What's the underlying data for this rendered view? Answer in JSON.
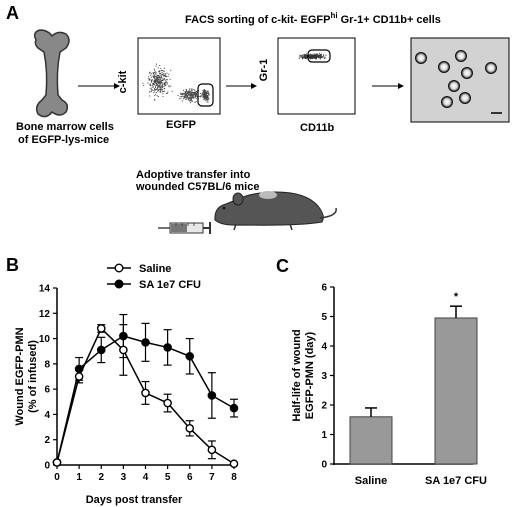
{
  "panel_a": {
    "label": "A",
    "title_pre": "FACS sorting of c-kit- EGFP",
    "title_sup": "hi",
    "title_post": " Gr-1+ CD11b+ cells",
    "bone_caption_1": "Bone marrow cells",
    "bone_caption_2": "of EGFP-lys-mice",
    "plot1_ylabel": "c-kit",
    "plot1_xlabel": "EGFP",
    "plot2_ylabel": "Gr-1",
    "plot2_xlabel": "CD11b",
    "transfer_1": "Adoptive transfer into",
    "transfer_2": "wounded C57BL/6 mice"
  },
  "panel_b": {
    "label": "B"
  },
  "panel_c": {
    "label": "C"
  },
  "chart_data": [
    {
      "type": "line",
      "xlabel": "Days post transfer",
      "ylabel_1": "Wound EGFP-PMN",
      "ylabel_2": "(% of infused)",
      "x": [
        0,
        1,
        2,
        3,
        4,
        5,
        6,
        7,
        8
      ],
      "xticks": [
        "0",
        "1",
        "2",
        "3",
        "4",
        "5",
        "6",
        "7",
        "8"
      ],
      "yticks": [
        "0",
        "2",
        "4",
        "6",
        "8",
        "10",
        "12",
        "14"
      ],
      "xlim": [
        0,
        8
      ],
      "ylim": [
        0,
        14
      ],
      "series": [
        {
          "name": "Saline",
          "marker": "open",
          "values": [
            0.2,
            7.0,
            10.8,
            9.1,
            5.7,
            4.9,
            2.9,
            1.2,
            0.1
          ],
          "errors": [
            0.1,
            0.5,
            0.3,
            2.0,
            0.9,
            0.7,
            0.6,
            0.7,
            0.1
          ]
        },
        {
          "name": "SA 1e7 CFU",
          "marker": "filled",
          "values": [
            0.2,
            7.6,
            9.1,
            10.2,
            9.7,
            9.3,
            8.6,
            5.5,
            4.5
          ],
          "errors": [
            0.1,
            0.9,
            1.0,
            1.7,
            1.5,
            1.4,
            1.4,
            1.8,
            0.7
          ]
        }
      ]
    },
    {
      "type": "bar",
      "categories": [
        "Saline",
        "SA 1e7 CFU"
      ],
      "values": [
        1.6,
        4.95
      ],
      "errors": [
        0.3,
        0.4
      ],
      "ylabel_1": "Half-life of wound",
      "ylabel_2": "EGFP-PMN (day)",
      "yticks": [
        "0",
        "1",
        "2",
        "3",
        "4",
        "5",
        "6"
      ],
      "ylim": [
        0,
        6
      ],
      "annotation": "*"
    }
  ],
  "colors": {
    "bar": "#999999",
    "mouse": "#555555",
    "bone": "#888888"
  }
}
